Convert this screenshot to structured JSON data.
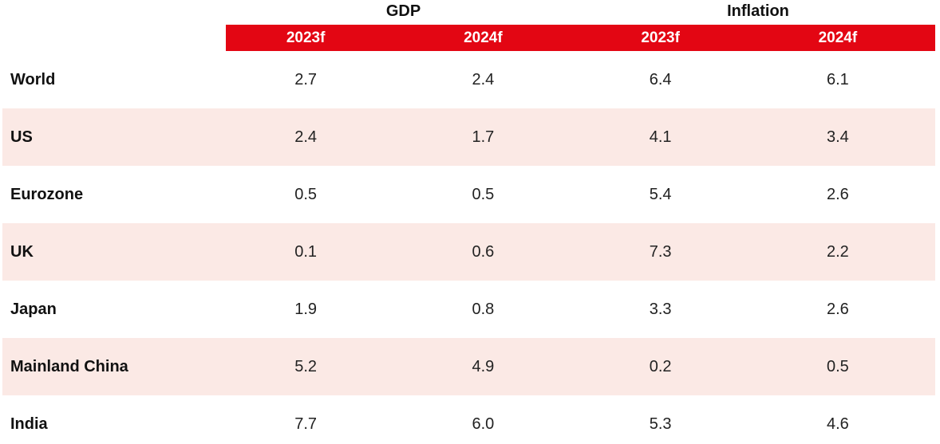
{
  "groups": {
    "gdp": "GDP",
    "inflation": "Inflation"
  },
  "columns": [
    "2023f",
    "2024f",
    "2023f",
    "2024f"
  ],
  "colors": {
    "header_bg": "#e30613",
    "row_shade": "#fbe9e5"
  },
  "rows": [
    {
      "label": "World",
      "values": [
        "2.7",
        "2.4",
        "6.4",
        "6.1"
      ]
    },
    {
      "label": "US",
      "values": [
        "2.4",
        "1.7",
        "4.1",
        "3.4"
      ]
    },
    {
      "label": "Eurozone",
      "values": [
        "0.5",
        "0.5",
        "5.4",
        "2.6"
      ]
    },
    {
      "label": "UK",
      "values": [
        "0.1",
        "0.6",
        "7.3",
        "2.2"
      ]
    },
    {
      "label": "Japan",
      "values": [
        "1.9",
        "0.8",
        "3.3",
        "2.6"
      ]
    },
    {
      "label": "Mainland China",
      "values": [
        "5.2",
        "4.9",
        "0.2",
        "0.5"
      ]
    },
    {
      "label": "India",
      "values": [
        "7.7",
        "6.0",
        "5.3",
        "4.6"
      ]
    }
  ]
}
